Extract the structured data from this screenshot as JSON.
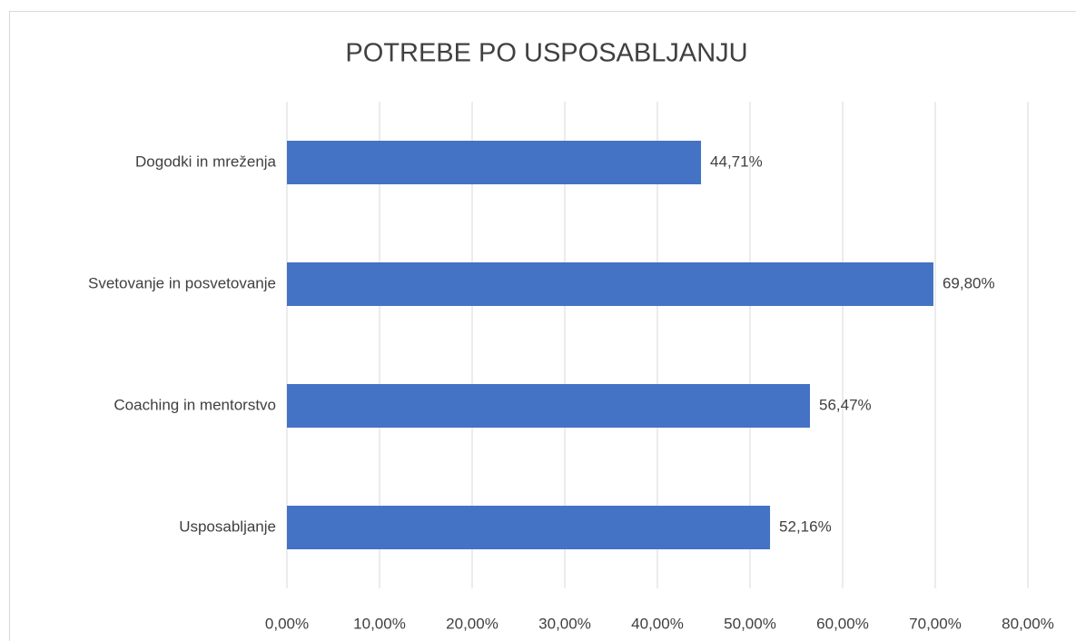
{
  "chart_data": {
    "type": "barh",
    "title": "POTREBE PO USPOSABLJANJU",
    "categories": [
      "Dogodki in mreženja",
      "Svetovanje in posvetovanje",
      "Coaching in mentorstvo",
      "Usposabljanje"
    ],
    "values": [
      44.71,
      69.8,
      56.47,
      52.16
    ],
    "value_labels": [
      "44,71%",
      "69,80%",
      "56,47%",
      "52,16%"
    ],
    "color": "#4472c4",
    "xlim": [
      0,
      80
    ],
    "xticks": [
      {
        "value": 0,
        "label": "0,00%"
      },
      {
        "value": 10,
        "label": "10,00%"
      },
      {
        "value": 20,
        "label": "20,00%"
      },
      {
        "value": 30,
        "label": "30,00%"
      },
      {
        "value": 40,
        "label": "40,00%"
      },
      {
        "value": 50,
        "label": "50,00%"
      },
      {
        "value": 60,
        "label": "60,00%"
      },
      {
        "value": 70,
        "label": "70,00%"
      },
      {
        "value": 80,
        "label": "80,00%"
      }
    ],
    "grid": true
  }
}
